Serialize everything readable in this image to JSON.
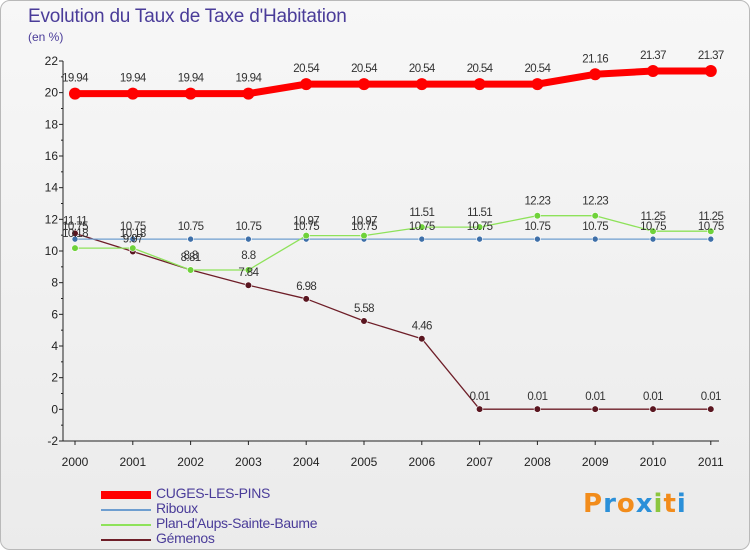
{
  "title": "Evolution du Taux de Taxe d'Habitation",
  "subtitle": "(en %)",
  "logo": {
    "letters": [
      "P",
      "r",
      "o",
      "x",
      "i",
      "t",
      "i"
    ],
    "colors": [
      "#f28c1b",
      "#2b90d9",
      "#f28c1b",
      "#2b90d9",
      "#8cc63e",
      "#f28c1b",
      "#2b90d9"
    ]
  },
  "chart_data": {
    "type": "line",
    "title": "Evolution du Taux de Taxe d'Habitation",
    "ylabel": "(en %)",
    "xlabel": "",
    "ylim": [
      -2,
      22
    ],
    "yticks": [
      -2,
      0,
      2,
      4,
      6,
      8,
      10,
      12,
      14,
      16,
      18,
      20,
      22
    ],
    "grid": false,
    "legend_position": "bottom-left",
    "categories": [
      "2000",
      "2001",
      "2002",
      "2003",
      "2004",
      "2005",
      "2006",
      "2007",
      "2008",
      "2009",
      "2010",
      "2011"
    ],
    "series": [
      {
        "name": "CUGES-LES-PINS",
        "color": "#ff0000",
        "values": [
          19.94,
          19.94,
          19.94,
          19.94,
          20.54,
          20.54,
          20.54,
          20.54,
          20.54,
          21.16,
          21.37,
          21.37
        ],
        "labels": [
          "19.94",
          "19.94",
          "19.94",
          "19.94",
          "20.54",
          "20.54",
          "20.54",
          "20.54",
          "20.54",
          "21.16",
          "21.37",
          "21.37"
        ]
      },
      {
        "name": "Riboux",
        "color": "#6e9ed0",
        "values": [
          10.75,
          10.75,
          10.75,
          10.75,
          10.75,
          10.75,
          10.75,
          10.75,
          10.75,
          10.75,
          10.75,
          10.75
        ],
        "labels": [
          "10.75",
          "10.75",
          "10.75",
          "10.75",
          "10.75",
          "10.75",
          "10.75",
          "10.75",
          "10.75",
          "10.75",
          "10.75",
          "10.75"
        ]
      },
      {
        "name": "Plan-d'Aups-Sainte-Baume",
        "color": "#8ee25a",
        "values": [
          10.18,
          10.18,
          8.8,
          8.8,
          10.97,
          10.97,
          11.51,
          11.51,
          12.23,
          12.23,
          11.25,
          11.25
        ],
        "labels": [
          "10.18",
          "10.18",
          "8.8",
          "8.8",
          "10.97",
          "10.97",
          "11.51",
          "11.51",
          "12.23",
          "12.23",
          "11.25",
          "11.25"
        ]
      },
      {
        "name": "Gémenos",
        "color": "#6e1e28",
        "values": [
          11.11,
          9.97,
          8.81,
          7.84,
          6.98,
          5.58,
          4.46,
          0.01,
          0.01,
          0.01,
          0.01,
          0.01
        ],
        "labels": [
          "11.11",
          "9.97",
          "8.81",
          "7.84",
          "6.98",
          "5.58",
          "4.46",
          "0.01",
          "0.01",
          "0.01",
          "0.01",
          "0.01"
        ]
      }
    ]
  }
}
